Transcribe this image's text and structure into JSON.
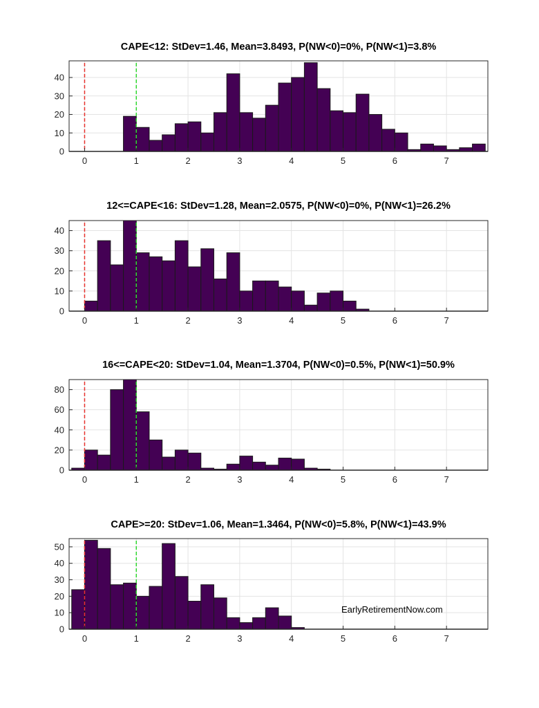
{
  "watermark": "EarlyRetirementNow.com",
  "colors": {
    "bar": "#440154",
    "ref_zero_line": "#e8322d",
    "ref_one_line": "#2fd82f"
  },
  "chart_data": [
    {
      "type": "bar",
      "title": "CAPE<12: StDev=1.46, Mean=3.8493, P(NW<0)=0%, P(NW<1)=3.8%",
      "xlim": [
        -0.3,
        7.8
      ],
      "ylim": [
        0,
        49
      ],
      "xticks": [
        0,
        1,
        2,
        3,
        4,
        5,
        6,
        7
      ],
      "yticks": [
        0,
        10,
        20,
        30,
        40
      ],
      "bin_width": 0.25,
      "bin_centers": [
        -0.125,
        0.125,
        0.375,
        0.625,
        0.875,
        1.125,
        1.375,
        1.625,
        1.875,
        2.125,
        2.375,
        2.625,
        2.875,
        3.125,
        3.375,
        3.625,
        3.875,
        4.125,
        4.375,
        4.625,
        4.875,
        5.125,
        5.375,
        5.625,
        5.875,
        6.125,
        6.375,
        6.625,
        6.875,
        7.125,
        7.375,
        7.625
      ],
      "values": [
        0,
        0,
        0,
        0,
        19,
        13,
        6,
        9,
        15,
        16,
        10,
        21,
        42,
        21,
        18,
        25,
        37,
        40,
        48,
        34,
        22,
        21,
        31,
        20,
        12,
        10,
        1,
        4,
        3,
        1,
        2,
        4
      ],
      "reference_lines": [
        {
          "x": 0,
          "color": "red",
          "style": "dashed"
        },
        {
          "x": 1,
          "color": "green",
          "style": "dashed"
        }
      ],
      "grid": true
    },
    {
      "type": "bar",
      "title": "12<=CAPE<16: StDev=1.28, Mean=2.0575, P(NW<0)=0%, P(NW<1)=26.2%",
      "xlim": [
        -0.3,
        7.8
      ],
      "ylim": [
        0,
        45
      ],
      "xticks": [
        0,
        1,
        2,
        3,
        4,
        5,
        6,
        7
      ],
      "yticks": [
        0,
        10,
        20,
        30,
        40
      ],
      "bin_width": 0.25,
      "bin_centers": [
        0.125,
        0.375,
        0.625,
        0.875,
        1.125,
        1.375,
        1.625,
        1.875,
        2.125,
        2.375,
        2.625,
        2.875,
        3.125,
        3.375,
        3.625,
        3.875,
        4.125,
        4.375,
        4.625,
        4.875,
        5.125,
        5.375
      ],
      "values": [
        5,
        35,
        23,
        45,
        29,
        27,
        25,
        35,
        22,
        31,
        16,
        29,
        10,
        15,
        15,
        12,
        10,
        3,
        9,
        10,
        5,
        1
      ],
      "reference_lines": [
        {
          "x": 0,
          "color": "red",
          "style": "dashed"
        },
        {
          "x": 1,
          "color": "green",
          "style": "dashed"
        }
      ],
      "grid": true
    },
    {
      "type": "bar",
      "title": "16<=CAPE<20: StDev=1.04, Mean=1.3704, P(NW<0)=0.5%, P(NW<1)=50.9%",
      "xlim": [
        -0.3,
        7.8
      ],
      "ylim": [
        0,
        90
      ],
      "xticks": [
        0,
        1,
        2,
        3,
        4,
        5,
        6,
        7
      ],
      "yticks": [
        0,
        20,
        40,
        60,
        80
      ],
      "bin_width": 0.25,
      "bin_centers": [
        -0.125,
        0.125,
        0.375,
        0.625,
        0.875,
        1.125,
        1.375,
        1.625,
        1.875,
        2.125,
        2.375,
        2.625,
        2.875,
        3.125,
        3.375,
        3.625,
        3.875,
        4.125,
        4.375,
        4.625
      ],
      "values": [
        2,
        20,
        15,
        80,
        90,
        58,
        30,
        13,
        20,
        17,
        2,
        1,
        6,
        14,
        8,
        5,
        12,
        11,
        2,
        1
      ],
      "reference_lines": [
        {
          "x": 0,
          "color": "red",
          "style": "dashed"
        },
        {
          "x": 1,
          "color": "green",
          "style": "dashed"
        }
      ],
      "grid": true
    },
    {
      "type": "bar",
      "title": "CAPE>=20: StDev=1.06, Mean=1.3464, P(NW<0)=5.8%, P(NW<1)=43.9%",
      "xlim": [
        -0.3,
        7.8
      ],
      "ylim": [
        0,
        55
      ],
      "xticks": [
        0,
        1,
        2,
        3,
        4,
        5,
        6,
        7
      ],
      "yticks": [
        0,
        10,
        20,
        30,
        40,
        50
      ],
      "bin_width": 0.25,
      "bin_centers": [
        -0.125,
        0.125,
        0.375,
        0.625,
        0.875,
        1.125,
        1.375,
        1.625,
        1.875,
        2.125,
        2.375,
        2.625,
        2.875,
        3.125,
        3.375,
        3.625,
        3.875,
        4.125
      ],
      "values": [
        24,
        54,
        49,
        27,
        28,
        20,
        26,
        52,
        32,
        17,
        27,
        19,
        7,
        4,
        7,
        13,
        8,
        1
      ],
      "reference_lines": [
        {
          "x": 0,
          "color": "red",
          "style": "dashed"
        },
        {
          "x": 1,
          "color": "green",
          "style": "dashed"
        }
      ],
      "grid": true
    }
  ]
}
